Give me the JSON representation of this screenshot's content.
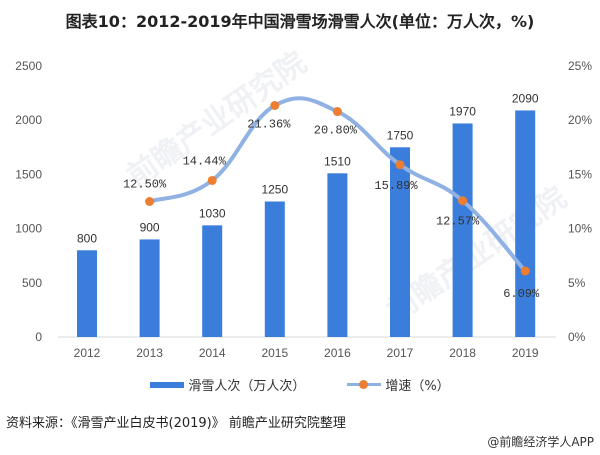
{
  "title": "图表10：2012-2019年中国滑雪场滑雪人次(单位：万人次，%)",
  "legend": {
    "bar_label": "滑雪人次（万人次）",
    "line_label": "增速（%）"
  },
  "source": "资料来源：《滑雪产业白皮书(2019)》 前瞻产业研究院整理",
  "credit": "@前瞻经济学人APP",
  "watermark": "前瞻产业研究院",
  "colors": {
    "bar": "#3a7ddb",
    "line": "#8fb1e3",
    "point": "#ed7d31"
  },
  "chart_data": {
    "type": "bar+line",
    "title": "图表10：2012-2019年中国滑雪场滑雪人次(单位：万人次，%)",
    "categories": [
      "2012",
      "2013",
      "2014",
      "2015",
      "2016",
      "2017",
      "2018",
      "2019"
    ],
    "series": [
      {
        "name": "滑雪人次（万人次）",
        "type": "bar",
        "axis": "left",
        "values": [
          800,
          900,
          1030,
          1250,
          1510,
          1750,
          1970,
          2090
        ]
      },
      {
        "name": "增速（%）",
        "type": "line",
        "axis": "right",
        "values": [
          null,
          12.5,
          14.44,
          21.36,
          20.8,
          15.89,
          12.57,
          6.09
        ],
        "labels": [
          "",
          "12.50%",
          "14.44%",
          "21.36%",
          "20.80%",
          "15.89%",
          "12.57%",
          "6.09%"
        ]
      }
    ],
    "left_axis": {
      "ticks": [
        "0",
        "500",
        "1000",
        "1500",
        "2000",
        "2500"
      ],
      "ylim": [
        0,
        2500
      ]
    },
    "right_axis": {
      "ticks": [
        "0%",
        "5%",
        "10%",
        "15%",
        "20%",
        "25%"
      ],
      "ylim": [
        0,
        25
      ]
    },
    "grid": false,
    "legend_position": "bottom"
  }
}
